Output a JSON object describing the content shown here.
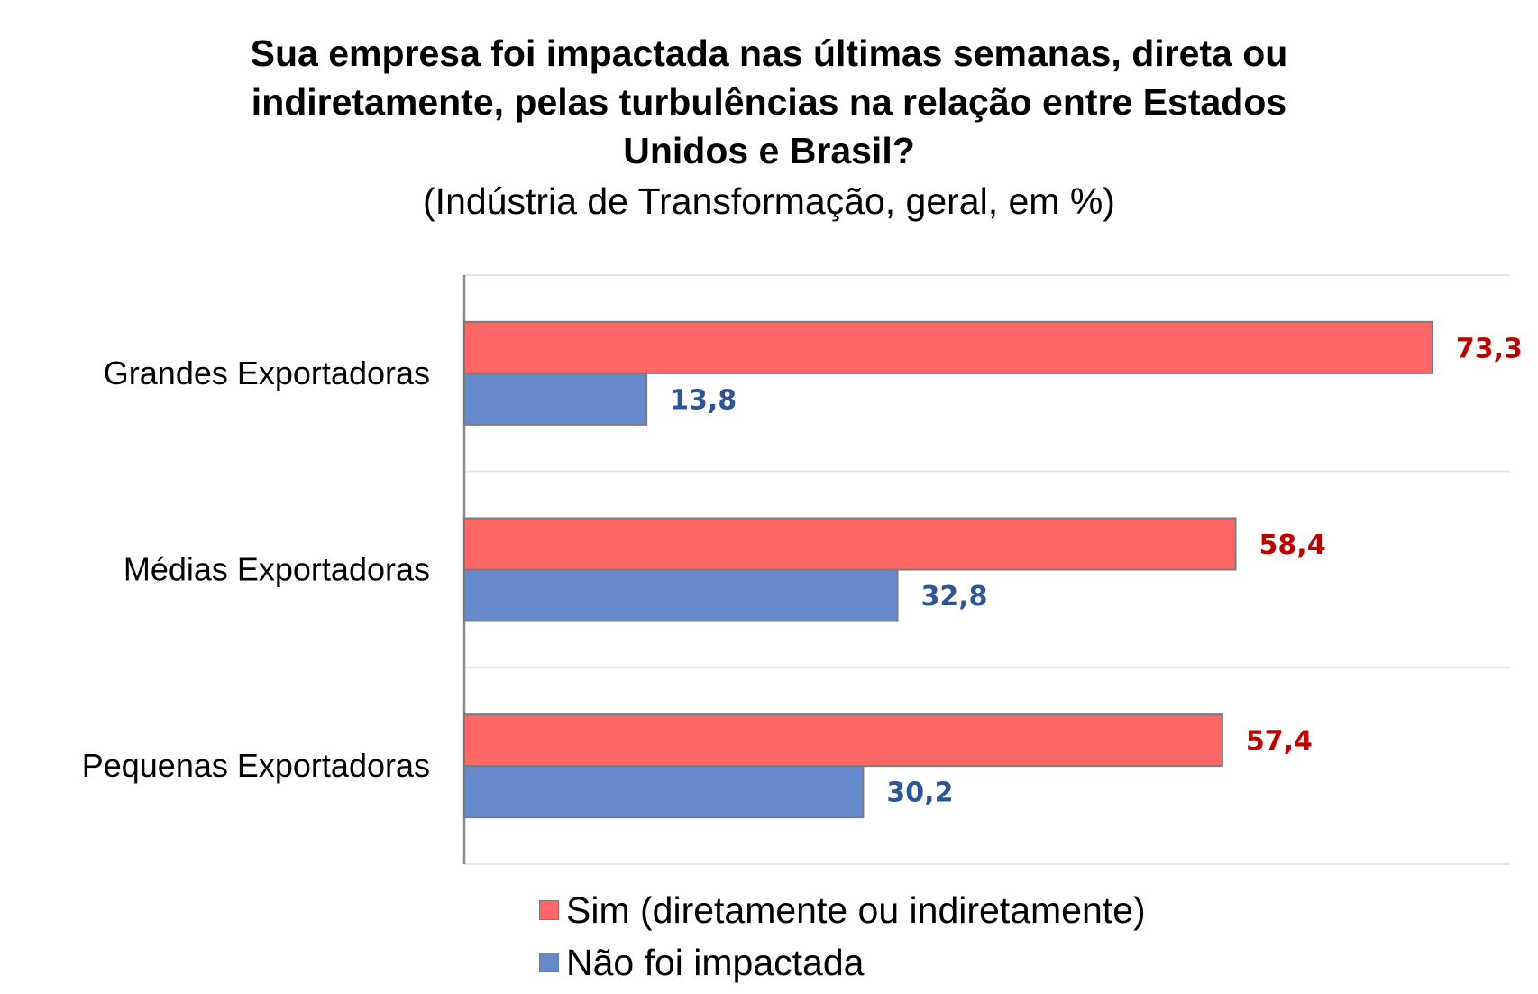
{
  "chart_data": {
    "type": "bar",
    "orientation": "horizontal",
    "title_lines": [
      "Sua empresa foi impactada nas últimas semanas, direta ou",
      "indiretamente, pelas turbulências na relação entre Estados",
      "Unidos e Brasil?"
    ],
    "subtitle": "(Indústria de Transformação, geral, em %)",
    "categories": [
      "Grandes Exportadoras",
      "Médias Exportadoras",
      "Pequenas Exportadoras"
    ],
    "series": [
      {
        "name": "Sim (diretamente ou indiretamente)",
        "values": [
          73.3,
          58.4,
          57.4
        ],
        "labels": [
          "73,3",
          "58,4",
          "57,4"
        ],
        "color": "#ff6666",
        "label_color": "#c00000"
      },
      {
        "name": "Não foi impactada",
        "values": [
          13.8,
          32.8,
          30.2
        ],
        "labels": [
          "13,8",
          "32,8",
          "30,2"
        ],
        "color": "#6688cc",
        "label_color": "#2f5597"
      }
    ],
    "xlim": [
      0,
      80
    ],
    "grid": true,
    "legend_position": "bottom"
  }
}
